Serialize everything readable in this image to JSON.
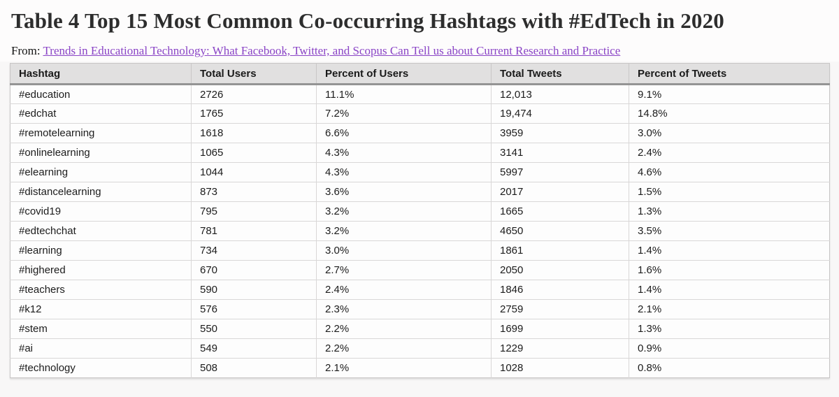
{
  "page": {
    "title": "Table 4 Top 15 Most Common Co-occurring Hashtags with #EdTech in 2020",
    "source_prefix": "From: ",
    "source_link_text": "Trends in Educational Technology: What Facebook, Twitter, and Scopus Can Tell us about Current Research and Practice"
  },
  "colors": {
    "link_purple": "#8a44c6",
    "header_bg": "#e1e0e0",
    "header_rule": "#949494",
    "row_border": "#d9d7d7",
    "title_text": "#2d2d2d"
  },
  "table": {
    "columns": [
      "Hashtag",
      "Total Users",
      "Percent of Users",
      "Total Tweets",
      "Percent of Tweets"
    ],
    "rows": [
      [
        "#education",
        "2726",
        "11.1%",
        "12,013",
        "9.1%"
      ],
      [
        "#edchat",
        "1765",
        "7.2%",
        "19,474",
        "14.8%"
      ],
      [
        "#remotelearning",
        "1618",
        "6.6%",
        "3959",
        "3.0%"
      ],
      [
        "#onlinelearning",
        "1065",
        "4.3%",
        "3141",
        "2.4%"
      ],
      [
        "#elearning",
        "1044",
        "4.3%",
        "5997",
        "4.6%"
      ],
      [
        "#distancelearning",
        "873",
        "3.6%",
        "2017",
        "1.5%"
      ],
      [
        "#covid19",
        "795",
        "3.2%",
        "1665",
        "1.3%"
      ],
      [
        "#edtechchat",
        "781",
        "3.2%",
        "4650",
        "3.5%"
      ],
      [
        "#learning",
        "734",
        "3.0%",
        "1861",
        "1.4%"
      ],
      [
        "#highered",
        "670",
        "2.7%",
        "2050",
        "1.6%"
      ],
      [
        "#teachers",
        "590",
        "2.4%",
        "1846",
        "1.4%"
      ],
      [
        "#k12",
        "576",
        "2.3%",
        "2759",
        "2.1%"
      ],
      [
        "#stem",
        "550",
        "2.2%",
        "1699",
        "1.3%"
      ],
      [
        "#ai",
        "549",
        "2.2%",
        "1229",
        "0.9%"
      ],
      [
        "#technology",
        "508",
        "2.1%",
        "1028",
        "0.8%"
      ]
    ]
  }
}
